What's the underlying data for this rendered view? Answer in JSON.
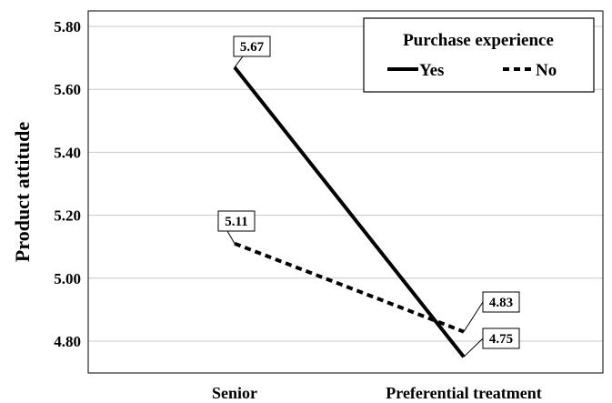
{
  "chart_data": {
    "type": "line",
    "categories": [
      "Senior",
      "Preferential treatment"
    ],
    "series": [
      {
        "name": "Yes",
        "values": [
          5.67,
          4.75
        ],
        "line_style": "solid"
      },
      {
        "name": "No",
        "values": [
          5.11,
          4.83
        ],
        "line_style": "dashed"
      }
    ],
    "ylabel": "Product attitude",
    "xlabel": "",
    "ylim": [
      4.7,
      5.8
    ],
    "yticks": [
      "4.80",
      "5.00",
      "5.20",
      "5.40",
      "5.60",
      "5.80"
    ],
    "ytick_values": [
      4.8,
      5.0,
      5.2,
      5.4,
      5.6,
      5.8
    ],
    "legend": {
      "title": "Purchase experience",
      "placement": "top-right"
    },
    "grid": "horizontal",
    "line_color": "#000000",
    "grid_color": "#c8c8c8",
    "data_labels": [
      "5.67",
      "4.75",
      "5.11",
      "4.83"
    ]
  }
}
